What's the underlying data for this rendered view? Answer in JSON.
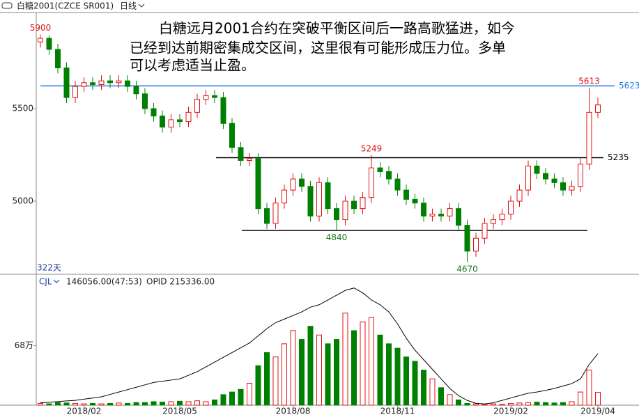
{
  "chart_data": {
    "type": "candlestick",
    "title": "白糖2001(CZCE SR001)",
    "period": "日线",
    "annotation": [
      "白糖远月2001合约在突破平衡区间后一路高歌猛进，如今",
      "已经到达前期密集成交区间，这里很有可能形成压力位。多单",
      "可以考虑适当止盈。"
    ],
    "days_label": "322天",
    "categories": [
      null,
      null,
      null,
      null,
      null,
      "2018/02",
      null,
      null,
      null,
      null,
      null,
      null,
      null,
      null,
      null,
      null,
      "2018/05",
      null,
      null,
      null,
      null,
      null,
      null,
      null,
      null,
      null,
      null,
      null,
      null,
      "2018/08",
      null,
      null,
      null,
      null,
      null,
      null,
      null,
      null,
      null,
      null,
      null,
      "2018/11",
      null,
      null,
      null,
      null,
      null,
      null,
      null,
      null,
      null,
      null,
      null,
      null,
      "2019/02",
      null,
      null,
      null,
      null,
      null,
      null,
      null,
      null,
      null,
      "2019/04"
    ],
    "open": [
      5860,
      5880,
      5820,
      5720,
      5560,
      5620,
      5640,
      5630,
      5650,
      5640,
      5650,
      5620,
      5580,
      5500,
      5460,
      5400,
      5440,
      5430,
      5480,
      5550,
      5570,
      5560,
      5420,
      5290,
      5220,
      5230,
      4960,
      4880,
      4990,
      5060,
      5120,
      5080,
      4920,
      5100,
      4960,
      4900,
      5000,
      4960,
      5020,
      5180,
      5160,
      5120,
      5060,
      5010,
      4990,
      4920,
      4930,
      4920,
      4960,
      4870,
      4730,
      4800,
      4880,
      4900,
      4930,
      5000,
      5060,
      5190,
      5150,
      5120,
      5100,
      5060,
      5080,
      5200,
      5480
    ],
    "high": [
      5900,
      5895,
      5850,
      5750,
      5650,
      5670,
      5670,
      5680,
      5680,
      5680,
      5680,
      5650,
      5610,
      5530,
      5490,
      5470,
      5470,
      5510,
      5580,
      5600,
      5600,
      5590,
      5450,
      5320,
      5260,
      5260,
      4990,
      5020,
      5090,
      5150,
      5150,
      5110,
      5130,
      5130,
      4990,
      5030,
      5030,
      5050,
      5249,
      5210,
      5190,
      5150,
      5090,
      5040,
      5020,
      4960,
      4960,
      4990,
      4990,
      4900,
      4830,
      4910,
      4930,
      4960,
      5030,
      5090,
      5220,
      5220,
      5180,
      5150,
      5130,
      5110,
      5230,
      5613,
      5560
    ],
    "low": [
      5830,
      5790,
      5690,
      5530,
      5530,
      5590,
      5600,
      5600,
      5610,
      5610,
      5590,
      5550,
      5470,
      5430,
      5370,
      5370,
      5400,
      5400,
      5450,
      5520,
      5530,
      5390,
      5260,
      5190,
      5190,
      4930,
      4850,
      4850,
      4960,
      5030,
      5050,
      4890,
      4890,
      4930,
      4840,
      4870,
      4930,
      4930,
      4990,
      5130,
      5090,
      5030,
      4980,
      4960,
      4890,
      4890,
      4890,
      4890,
      4840,
      4670,
      4700,
      4770,
      4850,
      4870,
      4900,
      4970,
      5030,
      5120,
      5090,
      5070,
      5030,
      5030,
      5050,
      5170,
      5450
    ],
    "close": [
      5880,
      5820,
      5720,
      5560,
      5620,
      5640,
      5630,
      5650,
      5640,
      5650,
      5620,
      5580,
      5500,
      5460,
      5400,
      5440,
      5430,
      5480,
      5550,
      5570,
      5560,
      5420,
      5290,
      5220,
      5230,
      4960,
      4880,
      4990,
      5060,
      5120,
      5080,
      4920,
      5100,
      4960,
      4900,
      5000,
      4960,
      5020,
      5180,
      5160,
      5120,
      5060,
      5010,
      4990,
      4920,
      4930,
      4920,
      4960,
      4870,
      4730,
      4800,
      4880,
      4900,
      4930,
      5000,
      5060,
      5190,
      5150,
      5120,
      5100,
      5060,
      5080,
      5200,
      5480,
      5520
    ],
    "up_color": "#e01010",
    "down_color": "#008000",
    "ylim": [
      4609,
      6019
    ],
    "yticks": [
      5000,
      5500
    ],
    "hlines": [
      {
        "value": 5623,
        "color": "#1e7be0",
        "show_label": true
      },
      {
        "value": 5235,
        "color": "#000000",
        "show_label": true
      },
      {
        "value": 4842,
        "color": "#000000",
        "show_label": false
      }
    ],
    "price_labels": [
      {
        "value": 5900,
        "color": "#e01010"
      },
      {
        "value": 5613,
        "color": "#e01010"
      },
      {
        "value": 5249,
        "color": "#e01010"
      },
      {
        "value": 4840,
        "color": "#1a7a1a"
      },
      {
        "value": 4670,
        "color": "#1a7a1a"
      }
    ],
    "volume": {
      "title": "CJL",
      "readout": "146056.00(47:53)",
      "opid_label": "OPID 215336.00",
      "values": [
        20000,
        15000,
        30000,
        25000,
        20000,
        15000,
        20000,
        15000,
        20000,
        25000,
        20000,
        30000,
        30000,
        40000,
        35000,
        40000,
        45000,
        40000,
        50000,
        40000,
        60000,
        120000,
        150000,
        180000,
        250000,
        450000,
        600000,
        550000,
        700000,
        850000,
        750000,
        900000,
        800000,
        700000,
        750000,
        1050000,
        850000,
        950000,
        1000000,
        800000,
        700000,
        650000,
        550000,
        500000,
        400000,
        300000,
        200000,
        120000,
        60000,
        20000,
        15000,
        10000,
        15000,
        10000,
        20000,
        25000,
        30000,
        35000,
        30000,
        25000,
        30000,
        40000,
        150000,
        400000,
        146056
      ],
      "opid": [
        10000,
        12000,
        15000,
        18000,
        20000,
        25000,
        30000,
        35000,
        45000,
        55000,
        65000,
        75000,
        85000,
        95000,
        100000,
        105000,
        110000,
        125000,
        140000,
        160000,
        180000,
        200000,
        220000,
        240000,
        260000,
        290000,
        320000,
        345000,
        360000,
        375000,
        390000,
        410000,
        420000,
        440000,
        460000,
        480000,
        490000,
        470000,
        440000,
        420000,
        390000,
        340000,
        280000,
        230000,
        190000,
        150000,
        110000,
        70000,
        40000,
        20000,
        8000,
        5000,
        10000,
        20000,
        30000,
        40000,
        50000,
        55000,
        62000,
        70000,
        80000,
        90000,
        110000,
        170000,
        215336
      ],
      "ylim": [
        0,
        1350000
      ],
      "yticks": [
        {
          "value": 680000,
          "label": "68万"
        }
      ],
      "y2lim": [
        0,
        495000
      ],
      "opid_color": "#000000"
    }
  }
}
